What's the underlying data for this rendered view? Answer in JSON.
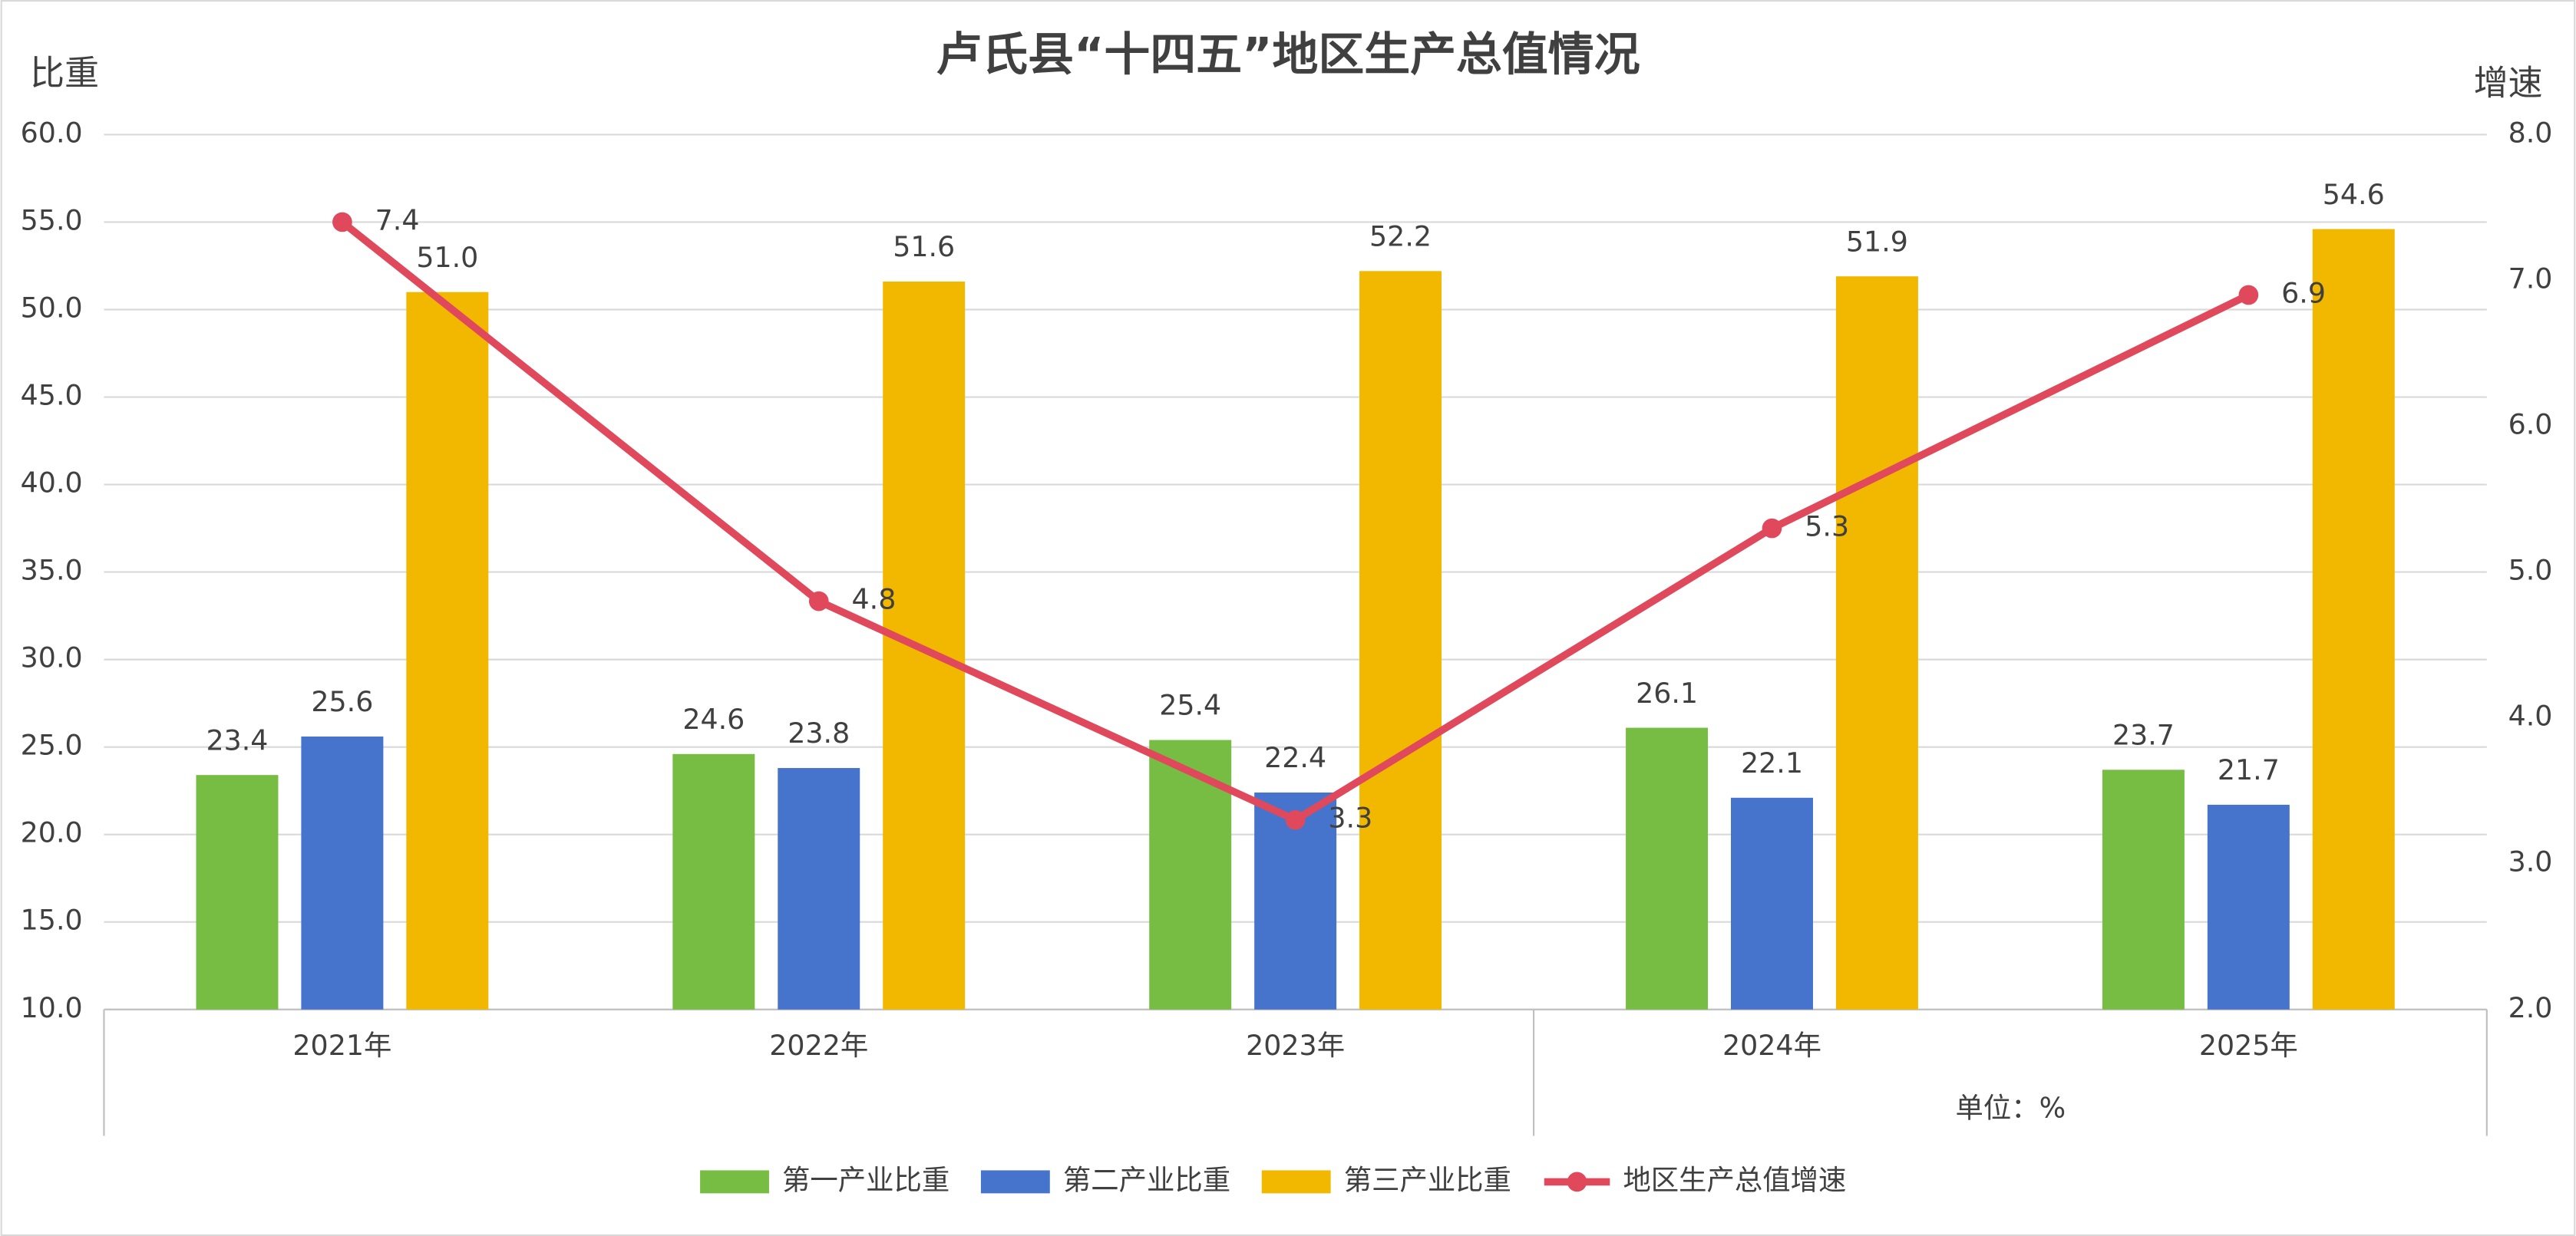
{
  "chart_data": {
    "type": "bar",
    "title": "卢氏县“十四五”地区生产总值情况",
    "y_label": "比重",
    "y2_label": "增速",
    "unit_note": "单位：%",
    "categories": [
      "2021年",
      "2022年",
      "2023年",
      "2024年",
      "2025年"
    ],
    "series": [
      {
        "name": "第一产业比重",
        "color": "#77bd43",
        "values": [
          23.4,
          24.6,
          25.4,
          26.1,
          23.7
        ],
        "value_labels": [
          "23.4",
          "24.6",
          "25.4",
          "26.1",
          "23.7"
        ]
      },
      {
        "name": "第二产业比重",
        "color": "#4674cc",
        "values": [
          25.6,
          23.8,
          22.4,
          22.1,
          21.7
        ],
        "value_labels": [
          "25.6",
          "23.8",
          "22.4",
          "22.1",
          "21.7"
        ]
      },
      {
        "name": "第三产业比重",
        "color": "#f2b800",
        "values": [
          51.0,
          51.6,
          52.2,
          51.9,
          54.6
        ],
        "value_labels": [
          "51.0",
          "51.6",
          "52.2",
          "51.9",
          "54.6"
        ]
      },
      {
        "name": "地区生产总值增速",
        "color": "#e0485c",
        "type": "line",
        "axis": "y2",
        "values": [
          7.4,
          4.8,
          3.3,
          5.3,
          6.9
        ],
        "value_labels": [
          "7.4",
          "4.8",
          "3.3",
          "5.3",
          "6.9"
        ]
      }
    ],
    "ylim": [
      10,
      60
    ],
    "yticks": [
      {
        "value": 10,
        "label": "10.0"
      },
      {
        "value": 15,
        "label": "15.0"
      },
      {
        "value": 20,
        "label": "20.0"
      },
      {
        "value": 25,
        "label": "25.0"
      },
      {
        "value": 30,
        "label": "30.0"
      },
      {
        "value": 35,
        "label": "35.0"
      },
      {
        "value": 40,
        "label": "40.0"
      },
      {
        "value": 45,
        "label": "45.0"
      },
      {
        "value": 50,
        "label": "50.0"
      },
      {
        "value": 55,
        "label": "55.0"
      },
      {
        "value": 60,
        "label": "60.0"
      }
    ],
    "y2lim": [
      2,
      8
    ],
    "y2ticks": [
      {
        "value": 2,
        "label": "2.0"
      },
      {
        "value": 3,
        "label": "3.0"
      },
      {
        "value": 4,
        "label": "4.0"
      },
      {
        "value": 5,
        "label": "5.0"
      },
      {
        "value": 6,
        "label": "6.0"
      },
      {
        "value": 7,
        "label": "7.0"
      },
      {
        "value": 8,
        "label": "8.0"
      }
    ],
    "grid": true,
    "legend": "bottom"
  }
}
